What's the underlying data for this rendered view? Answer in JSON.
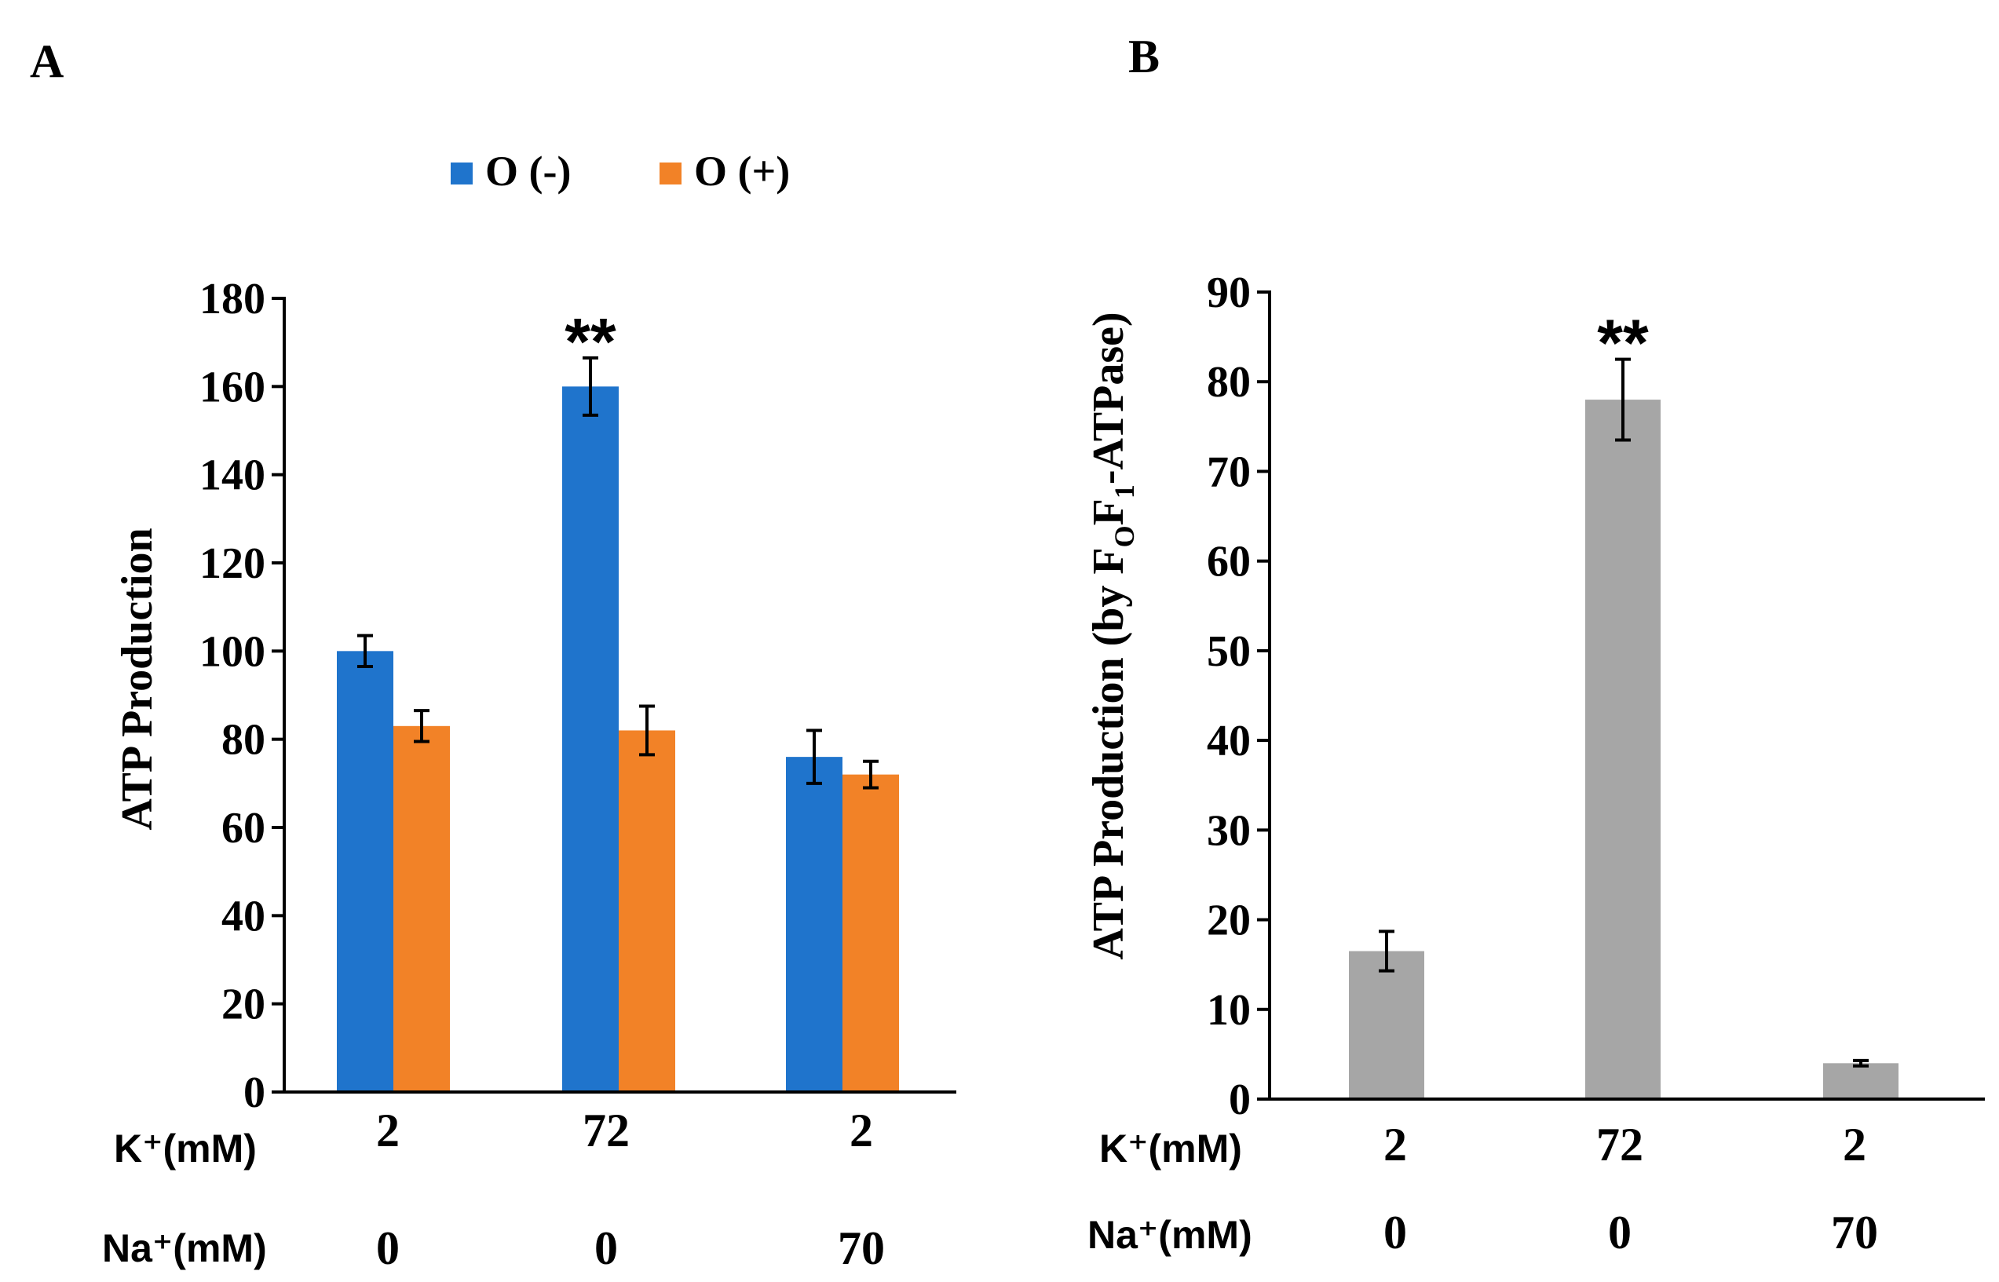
{
  "chart_data": [
    {
      "panel": "A",
      "type": "bar",
      "ylabel": "ATP Production",
      "ylim": [
        0,
        180
      ],
      "yticks": [
        "0",
        "20",
        "40",
        "60",
        "80",
        "100",
        "120",
        "140",
        "160",
        "180"
      ],
      "grid": false,
      "legend_position": "top",
      "series": [
        {
          "name": "O (-)",
          "color": "#1f74cc",
          "values": [
            100,
            160,
            76
          ],
          "errors": [
            3.5,
            6.5,
            6
          ]
        },
        {
          "name": "O (+)",
          "color": "#f28227",
          "values": [
            83,
            82,
            72
          ],
          "errors": [
            3.5,
            5.5,
            3
          ]
        }
      ],
      "row_labels": {
        "k": "K⁺(mM)",
        "na": "Na⁺(mM)"
      },
      "k_values": [
        "2",
        "72",
        "2"
      ],
      "na_values": [
        "0",
        "0",
        "70"
      ],
      "annotations": [
        {
          "group": 1,
          "text": "**"
        }
      ]
    },
    {
      "panel": "B",
      "type": "bar",
      "ylabel": "ATP Production (by FₒF₁-ATPase)",
      "ylim": [
        0,
        90
      ],
      "yticks": [
        "0",
        "10",
        "20",
        "30",
        "40",
        "50",
        "60",
        "70",
        "80",
        "90"
      ],
      "grid": false,
      "series": [
        {
          "name": "FoF1-ATPase",
          "color": "#a6a6a6",
          "values": [
            16.5,
            78,
            4
          ],
          "errors": [
            2.2,
            4.5,
            0.3
          ]
        }
      ],
      "row_labels": {
        "k": "K⁺(mM)",
        "na": "Na⁺(mM)"
      },
      "k_values": [
        "2",
        "72",
        "2"
      ],
      "na_values": [
        "0",
        "0",
        "70"
      ],
      "annotations": [
        {
          "group": 1,
          "text": "**"
        }
      ]
    }
  ]
}
